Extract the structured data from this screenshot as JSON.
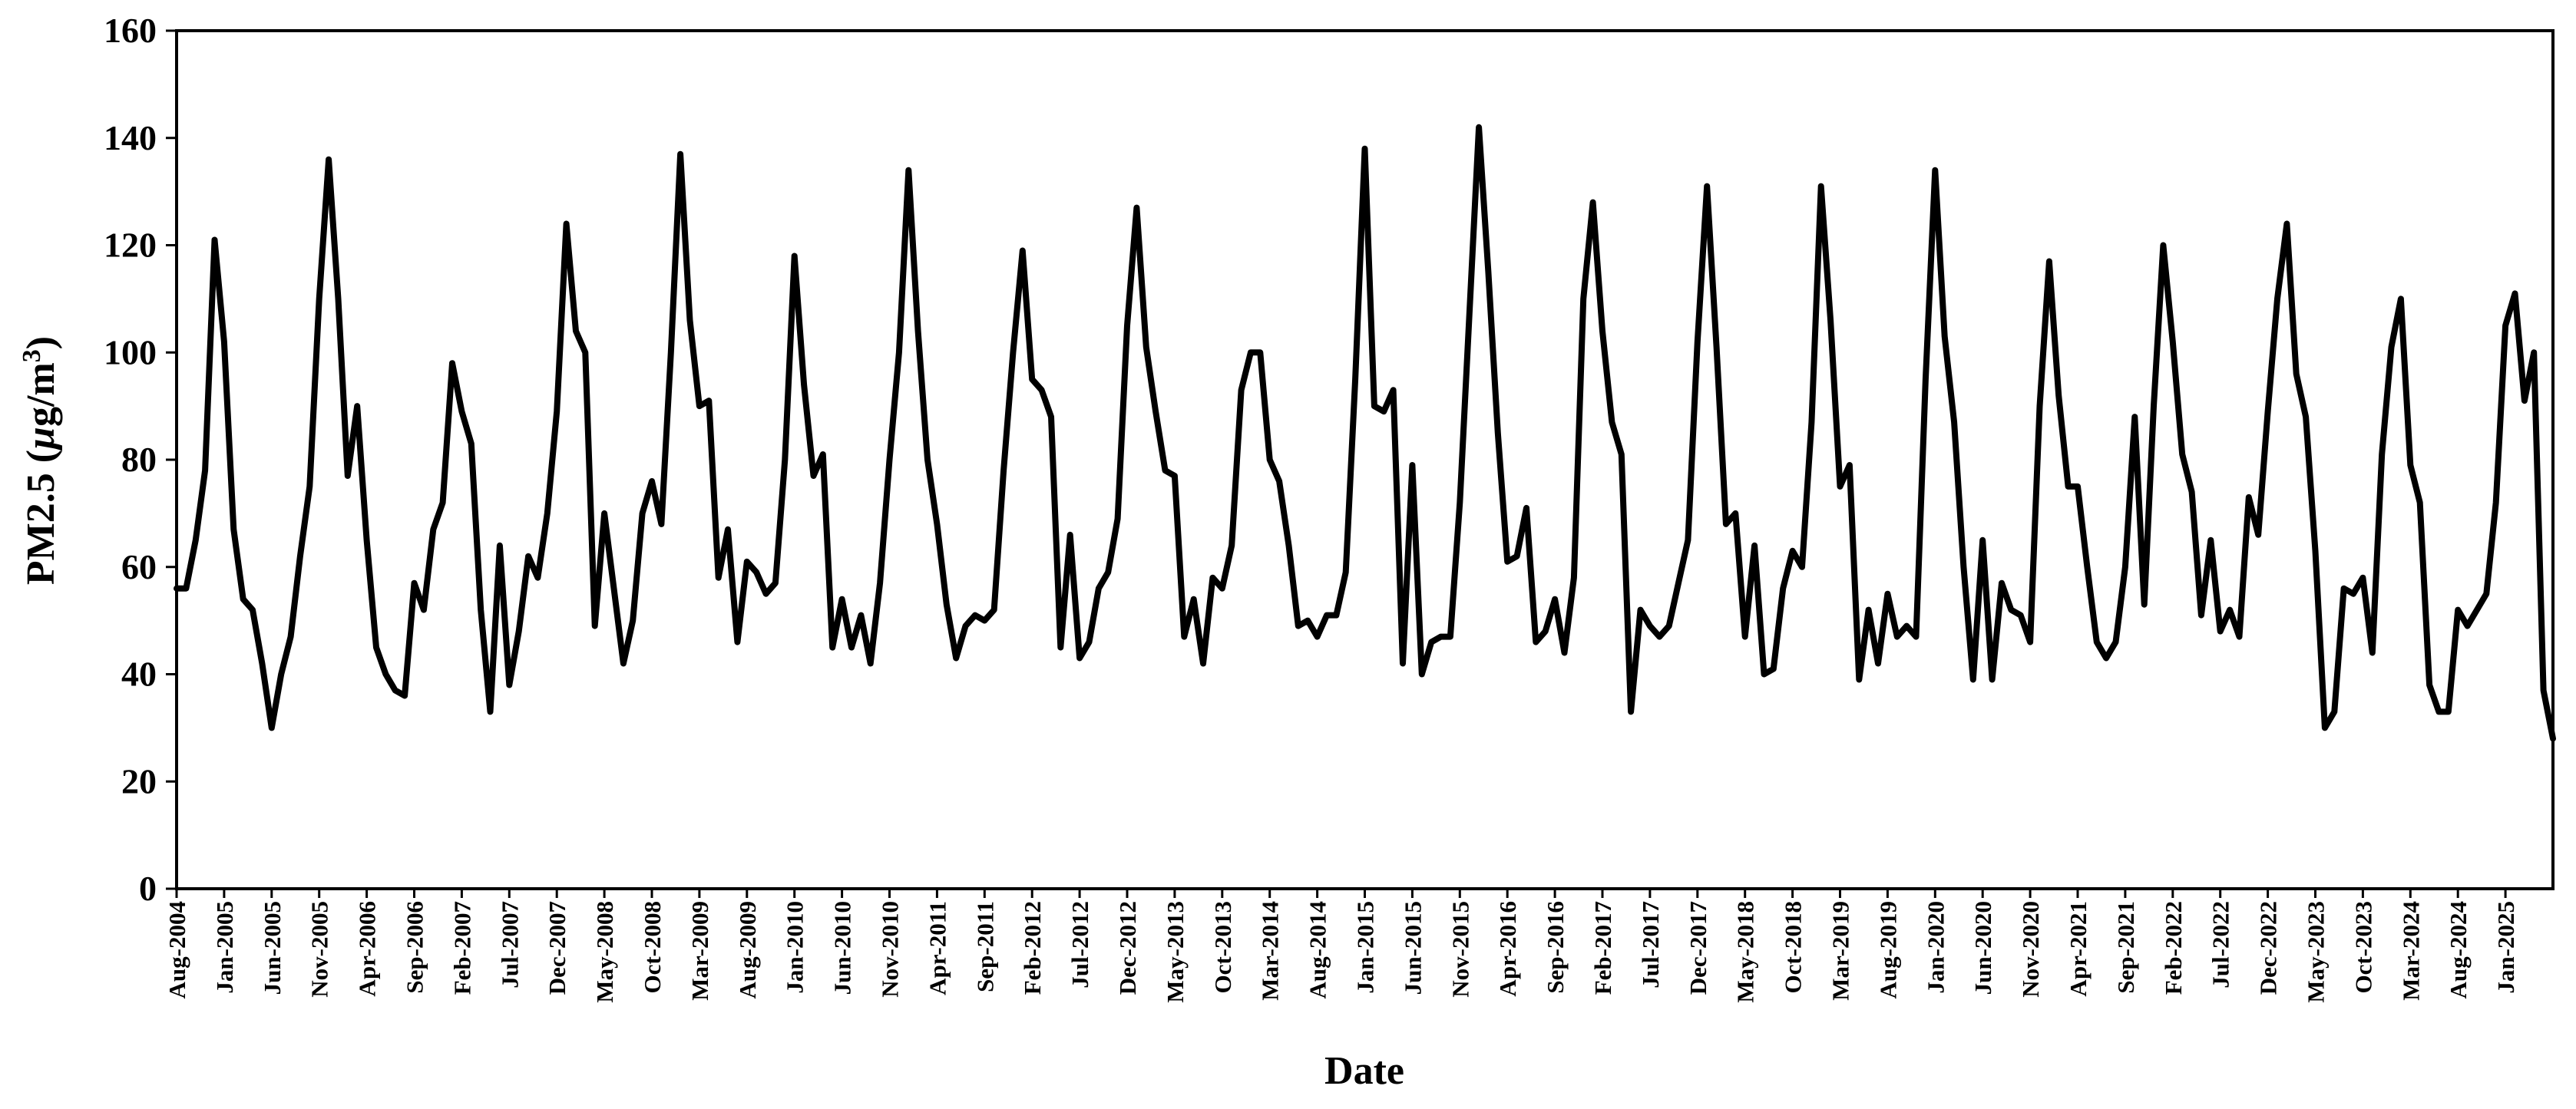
{
  "chart_data": {
    "type": "line",
    "title": "",
    "xlabel": "Date",
    "ylabel_prefix": "PM2.5 (",
    "ylabel_mu": "µ",
    "ylabel_unit_mid": "g/m",
    "ylabel_sup": "3",
    "ylabel_suffix": ")",
    "ylim": [
      0,
      160
    ],
    "yticks": [
      0,
      20,
      40,
      60,
      80,
      100,
      120,
      140,
      160
    ],
    "xtick_labels": [
      "Aug-2004",
      "Jan-2005",
      "Jun-2005",
      "Nov-2005",
      "Apr-2006",
      "Sep-2006",
      "Feb-2007",
      "Jul-2007",
      "Dec-2007",
      "May-2008",
      "Oct-2008",
      "Mar-2009",
      "Aug-2009",
      "Jan-2010",
      "Jun-2010",
      "Nov-2010",
      "Apr-2011",
      "Sep-2011",
      "Feb-2012",
      "Jul-2012",
      "Dec-2012",
      "May-2013",
      "Oct-2013",
      "Mar-2014",
      "Aug-2014",
      "Jan-2015",
      "Jun-2015",
      "Nov-2015",
      "Apr-2016",
      "Sep-2016",
      "Feb-2017",
      "Jul-2017",
      "Dec-2017",
      "May-2018",
      "Oct-2018",
      "Mar-2019",
      "Aug-2019",
      "Jan-2020",
      "Jun-2020",
      "Nov-2020",
      "Apr-2021",
      "Sep-2021",
      "Feb-2022",
      "Jul-2022",
      "Dec-2022",
      "May-2023",
      "Oct-2023",
      "Mar-2024",
      "Aug-2024",
      "Jan-2025"
    ],
    "x_start": "Aug-2004",
    "x_end": "Jun-2025",
    "grid": false,
    "legend": "none",
    "line_color": "#000000",
    "series": [
      {
        "values": [
          56,
          56,
          65,
          78,
          121,
          102,
          67,
          54,
          52,
          42,
          30,
          40,
          47,
          62,
          75,
          110,
          136,
          110,
          77,
          90,
          65,
          45,
          40,
          37,
          36,
          57,
          52,
          67,
          72,
          98,
          89,
          83,
          52,
          33,
          64,
          38,
          48,
          62,
          58,
          70,
          89,
          124,
          104,
          100,
          49,
          70,
          56,
          42,
          50,
          70,
          76,
          68,
          100,
          137,
          106,
          90,
          91,
          58,
          67,
          46,
          61,
          59,
          55,
          57,
          80,
          118,
          94,
          77,
          81,
          45,
          54,
          45,
          51,
          42,
          57,
          80,
          100,
          134,
          104,
          80,
          68,
          53,
          43,
          49,
          51,
          50,
          52,
          78,
          100,
          119,
          95,
          93,
          88,
          45,
          66,
          43,
          46,
          56,
          59,
          69,
          105,
          127,
          101,
          89,
          78,
          77,
          47,
          54,
          42,
          58,
          56,
          64,
          93,
          100,
          100,
          80,
          76,
          64,
          49,
          50,
          47,
          51,
          51,
          59,
          95,
          138,
          90,
          89,
          93,
          42,
          79,
          40,
          46,
          47,
          47,
          72,
          107,
          142,
          115,
          85,
          61,
          62,
          71,
          46,
          48,
          54,
          44,
          58,
          110,
          128,
          104,
          87,
          81,
          33,
          52,
          49,
          47,
          49,
          57,
          65,
          102,
          131,
          101,
          68,
          70,
          47,
          64,
          40,
          41,
          56,
          63,
          60,
          87,
          131,
          106,
          75,
          79,
          39,
          52,
          42,
          55,
          47,
          49,
          47,
          95,
          134,
          103,
          87,
          60,
          39,
          65,
          39,
          57,
          52,
          51,
          46,
          90,
          117,
          92,
          75,
          75,
          60,
          46,
          43,
          46,
          60,
          88,
          53,
          90,
          120,
          102,
          81,
          74,
          51,
          65,
          48,
          52,
          47,
          73,
          66,
          89,
          110,
          124,
          96,
          88,
          63,
          30,
          33,
          56,
          55,
          58,
          44,
          81,
          101,
          110,
          79,
          72,
          38,
          33,
          33,
          52,
          49,
          52,
          55,
          72,
          105,
          111,
          91,
          100,
          37,
          28
        ]
      }
    ]
  }
}
